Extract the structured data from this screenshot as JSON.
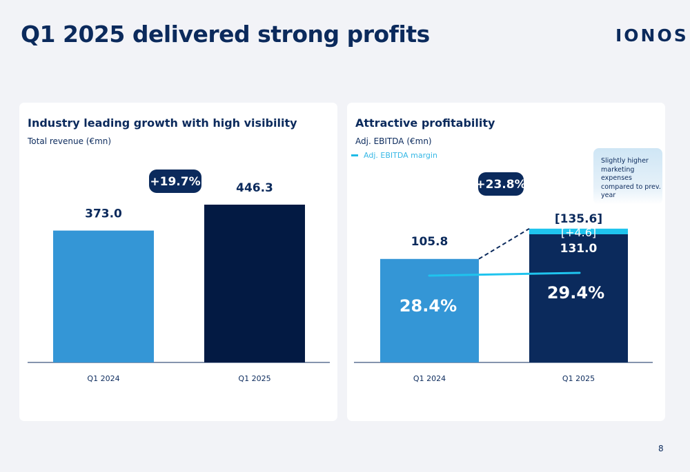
{
  "header": {
    "title": "Q1 2025 delivered strong profits",
    "logo": "IONOS"
  },
  "page_number": "8",
  "colors": {
    "navy": "#0b2a5c",
    "dark_navy": "#031a43",
    "blue": "#3496d6",
    "cyan": "#1fc4ee",
    "background": "#f2f3f7"
  },
  "panels": {
    "left": {
      "title": "Industry leading growth with high visibility",
      "subtitle": "Total revenue (€mn)"
    },
    "right": {
      "title": "Attractive profitability",
      "subtitle": "Adj. EBITDA (€mn)",
      "legend": "Adj. EBITDA margin",
      "callout": "Slightly higher marketing expenses compared to prev. year"
    }
  },
  "chart_data": [
    {
      "type": "bar",
      "title": "Industry leading growth with high visibility",
      "ylabel": "Total revenue (€mn)",
      "categories": [
        "Q1 2024",
        "Q1 2025"
      ],
      "values": [
        373.0,
        446.3
      ],
      "value_labels": [
        "373.0",
        "446.3"
      ],
      "colors": [
        "#3496d6",
        "#031a43"
      ],
      "growth_label": "+19.7%",
      "ylim": [
        0,
        470
      ]
    },
    {
      "type": "bar",
      "title": "Attractive profitability",
      "ylabel": "Adj. EBITDA (€mn)",
      "categories": [
        "Q1 2024",
        "Q1 2025"
      ],
      "series": [
        {
          "name": "Adj. EBITDA",
          "values": [
            105.8,
            131.0
          ],
          "labels": [
            "105.8",
            "131.0"
          ]
        },
        {
          "name": "increment",
          "values": [
            0,
            4.6
          ],
          "labels": [
            "",
            "[+4.6]"
          ]
        }
      ],
      "total_label": "[135.6]",
      "margin_series": {
        "name": "Adj. EBITDA margin",
        "values": [
          28.4,
          29.4
        ],
        "labels": [
          "28.4%",
          "29.4%"
        ]
      },
      "growth_label": "+23.8%",
      "ylim": [
        0,
        142
      ]
    }
  ]
}
